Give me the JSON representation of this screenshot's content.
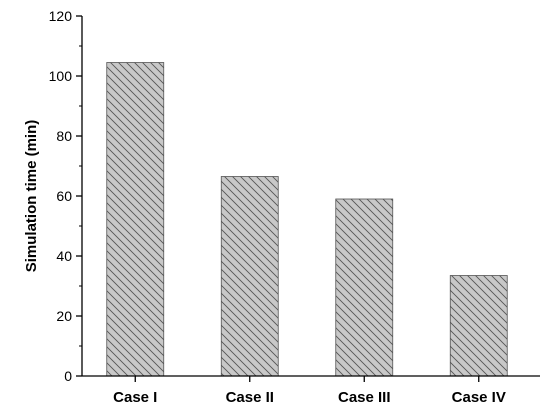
{
  "chart_data": {
    "type": "bar",
    "title": "",
    "xlabel": "",
    "ylabel": "Simulation time (min)",
    "categories": [
      "Case I",
      "Case II",
      "Case III",
      "Case IV"
    ],
    "values": [
      104.5,
      66.5,
      59,
      33.5
    ],
    "ylim": [
      0,
      120
    ],
    "yticks": [
      "0",
      "20",
      "40",
      "60",
      "80",
      "100",
      "120"
    ],
    "grid": false,
    "bar_fill": "#c8c8c8",
    "hatch": "diagonal",
    "hatch_color": "#555555",
    "axis_color": "#000000"
  }
}
